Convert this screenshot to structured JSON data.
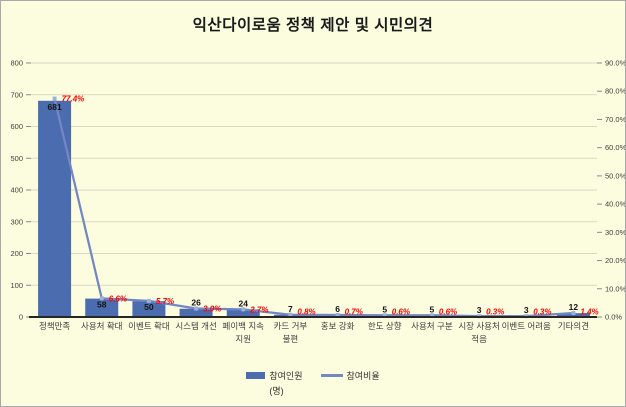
{
  "chart_data": {
    "type": "bar",
    "combo": "bar+line",
    "title": "익산다이로움 정책 제안 및 시민의견",
    "categories": [
      "정책만족",
      "사용처 확대",
      "이벤트 확대",
      "시스템 개선",
      "페이백 지속 지원",
      "카드 거부 불편",
      "홍보 강화",
      "한도 상향",
      "사용처 구분",
      "시장 사용처 적음",
      "이벤트 어려움",
      "기타의견"
    ],
    "category_lines": [
      [
        "정책만족"
      ],
      [
        "사용처 확대"
      ],
      [
        "이벤트 확대"
      ],
      [
        "시스템 개선"
      ],
      [
        "페이백 지속",
        "지원"
      ],
      [
        "카드 거부",
        "불편"
      ],
      [
        "홍보 강화"
      ],
      [
        "한도 상향"
      ],
      [
        "사용처 구분"
      ],
      [
        "시장 사용처",
        "적음"
      ],
      [
        "이벤트 어려움"
      ],
      [
        "기타의견"
      ]
    ],
    "series": [
      {
        "name": "참여인원 (명)",
        "type": "bar",
        "axis": "left",
        "values": [
          681,
          58,
          50,
          26,
          24,
          7,
          6,
          5,
          5,
          3,
          3,
          12
        ],
        "labels": [
          "681",
          "58",
          "50",
          "26",
          "24",
          "7",
          "6",
          "5",
          "5",
          "3",
          "3",
          "12"
        ]
      },
      {
        "name": "참여비율",
        "type": "line",
        "axis": "right",
        "values": [
          77.4,
          6.6,
          5.7,
          3.0,
          2.7,
          0.8,
          0.7,
          0.6,
          0.6,
          0.3,
          0.3,
          1.4
        ],
        "labels": [
          "77.4%",
          "6.6%",
          "5.7%",
          "3.0%",
          "2.7%",
          "0.8%",
          "0.7%",
          "0.6%",
          "0.6%",
          "0.3%",
          "0.3%",
          "1.4%"
        ]
      }
    ],
    "left_axis": {
      "min": 0,
      "max": 800,
      "step": 100,
      "ticks": [
        "0",
        "100",
        "200",
        "300",
        "400",
        "500",
        "600",
        "700",
        "800"
      ]
    },
    "right_axis": {
      "min": 0,
      "max": 90,
      "step": 10,
      "ticks": [
        "0.0%",
        "10.0%",
        "20.0%",
        "30.0%",
        "40.0%",
        "50.0%",
        "60.0%",
        "70.0%",
        "80.0%",
        "90.0%"
      ]
    },
    "grid": true,
    "legend_position": "bottom",
    "legend": {
      "bar_label": "참여인원",
      "bar_unit": "(명)",
      "line_label": "참여비율"
    },
    "colors": {
      "background": "#fcfcdf",
      "bar": "#4b6cae",
      "line": "#7487c3",
      "marker": "#9cb0d8",
      "count_label": "#141414",
      "percent_label": "#ff0000",
      "gridline": "#d9d9c4",
      "baseline": "#262626",
      "axis_text": "#3f3f3f"
    }
  }
}
